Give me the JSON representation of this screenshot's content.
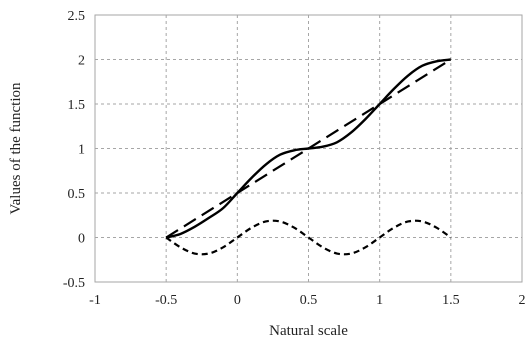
{
  "chart_data": {
    "type": "line",
    "xlabel": "Natural scale",
    "ylabel": "Values of the function",
    "xlim": [
      -1,
      2
    ],
    "ylim": [
      -0.5,
      2.5
    ],
    "xticks": [
      -1,
      -0.5,
      0,
      0.5,
      1,
      1.5,
      2
    ],
    "yticks": [
      -0.5,
      0,
      0.5,
      1,
      1.5,
      2,
      2.5
    ],
    "xtick_labels": [
      "-1",
      "-0.5",
      "0",
      "0.5",
      "1",
      "1.5",
      "2"
    ],
    "ytick_labels": [
      "-0.5",
      "0",
      "0.5",
      "1",
      "1.5",
      "2",
      "2.5"
    ],
    "grid": true,
    "legend": "none",
    "series": [
      {
        "style": "dashed-long",
        "color": "#000000",
        "x": [
          -0.5,
          1.5
        ],
        "y": [
          0,
          2
        ]
      },
      {
        "style": "solid",
        "color": "#000000",
        "x": [
          -0.5,
          -0.4,
          -0.3,
          -0.2,
          -0.1,
          0,
          0.1,
          0.2,
          0.3,
          0.4,
          0.5,
          0.6,
          0.7,
          0.8,
          0.9,
          1,
          1.1,
          1.2,
          1.3,
          1.4,
          1.5
        ],
        "y": [
          0,
          0.04,
          0.12,
          0.22,
          0.33,
          0.5,
          0.67,
          0.82,
          0.93,
          0.98,
          1,
          1.02,
          1.07,
          1.18,
          1.33,
          1.5,
          1.67,
          1.82,
          1.93,
          1.98,
          2
        ]
      },
      {
        "style": "dashed-short",
        "color": "#000000",
        "x": [
          -0.5,
          -0.4,
          -0.3,
          -0.2,
          -0.1,
          0,
          0.1,
          0.2,
          0.3,
          0.4,
          0.5,
          0.6,
          0.7,
          0.8,
          0.9,
          1,
          1.1,
          1.2,
          1.3,
          1.4,
          1.5
        ],
        "y": [
          0,
          -0.11,
          -0.18,
          -0.18,
          -0.11,
          0,
          0.11,
          0.18,
          0.18,
          0.11,
          0,
          -0.11,
          -0.18,
          -0.18,
          -0.11,
          0,
          0.11,
          0.18,
          0.18,
          0.11,
          0
        ]
      }
    ]
  }
}
